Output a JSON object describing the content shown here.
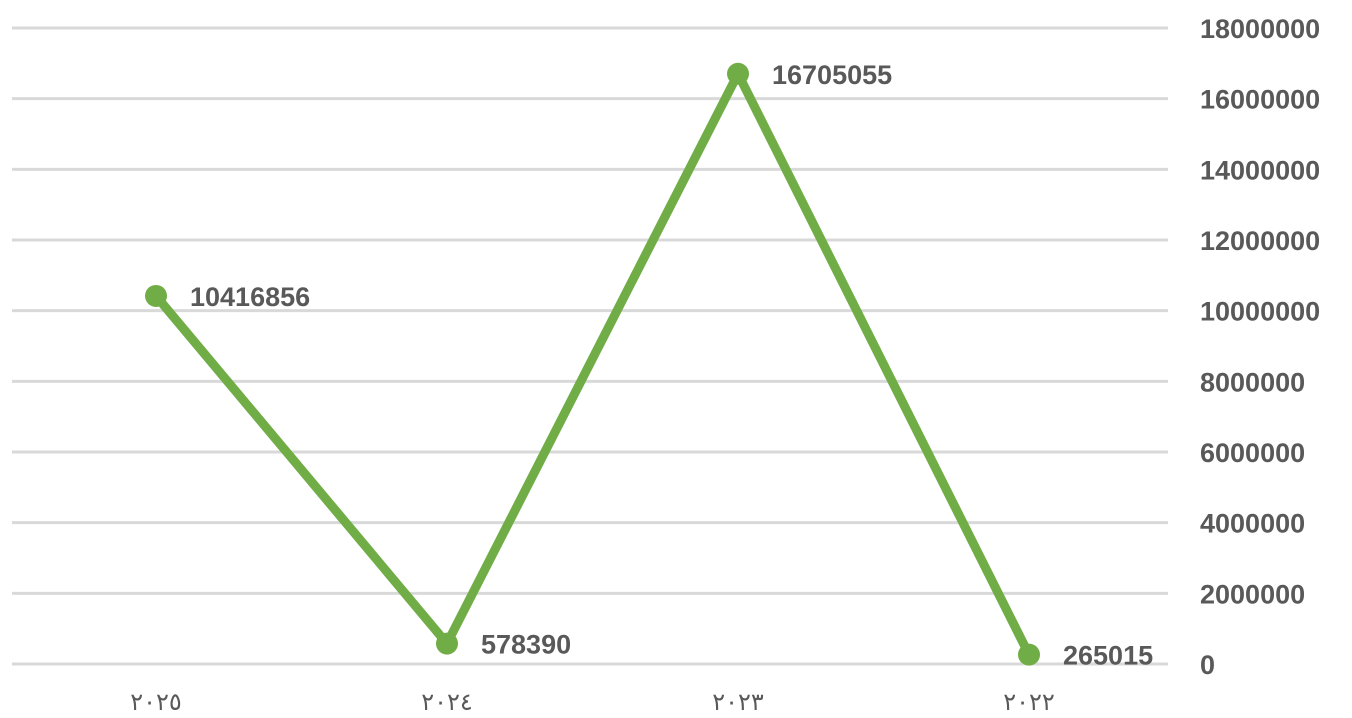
{
  "chart_data": {
    "type": "line",
    "categories": [
      "٢٠٢٥",
      "٢٠٢٤",
      "٢٠٢٣",
      "٢٠٢٢"
    ],
    "series": [
      {
        "values": [
          10416856,
          578390,
          16705055,
          265015
        ]
      }
    ],
    "data_labels": [
      "10416856",
      "578390",
      "16705055",
      "265015"
    ],
    "ylim": [
      0,
      18000000
    ],
    "yticks": [
      0,
      2000000,
      4000000,
      6000000,
      8000000,
      10000000,
      12000000,
      14000000,
      16000000,
      18000000
    ],
    "ytick_labels": [
      "0",
      "2000000",
      "4000000",
      "6000000",
      "8000000",
      "10000000",
      "12000000",
      "14000000",
      "16000000",
      "18000000"
    ],
    "y_axis_side": "right",
    "grid": true,
    "legend": "none",
    "title": "",
    "xlabel": "",
    "ylabel": "",
    "colors": {
      "line": "#70ad47",
      "grid": "#d9d9d9",
      "text": "#595959"
    }
  }
}
